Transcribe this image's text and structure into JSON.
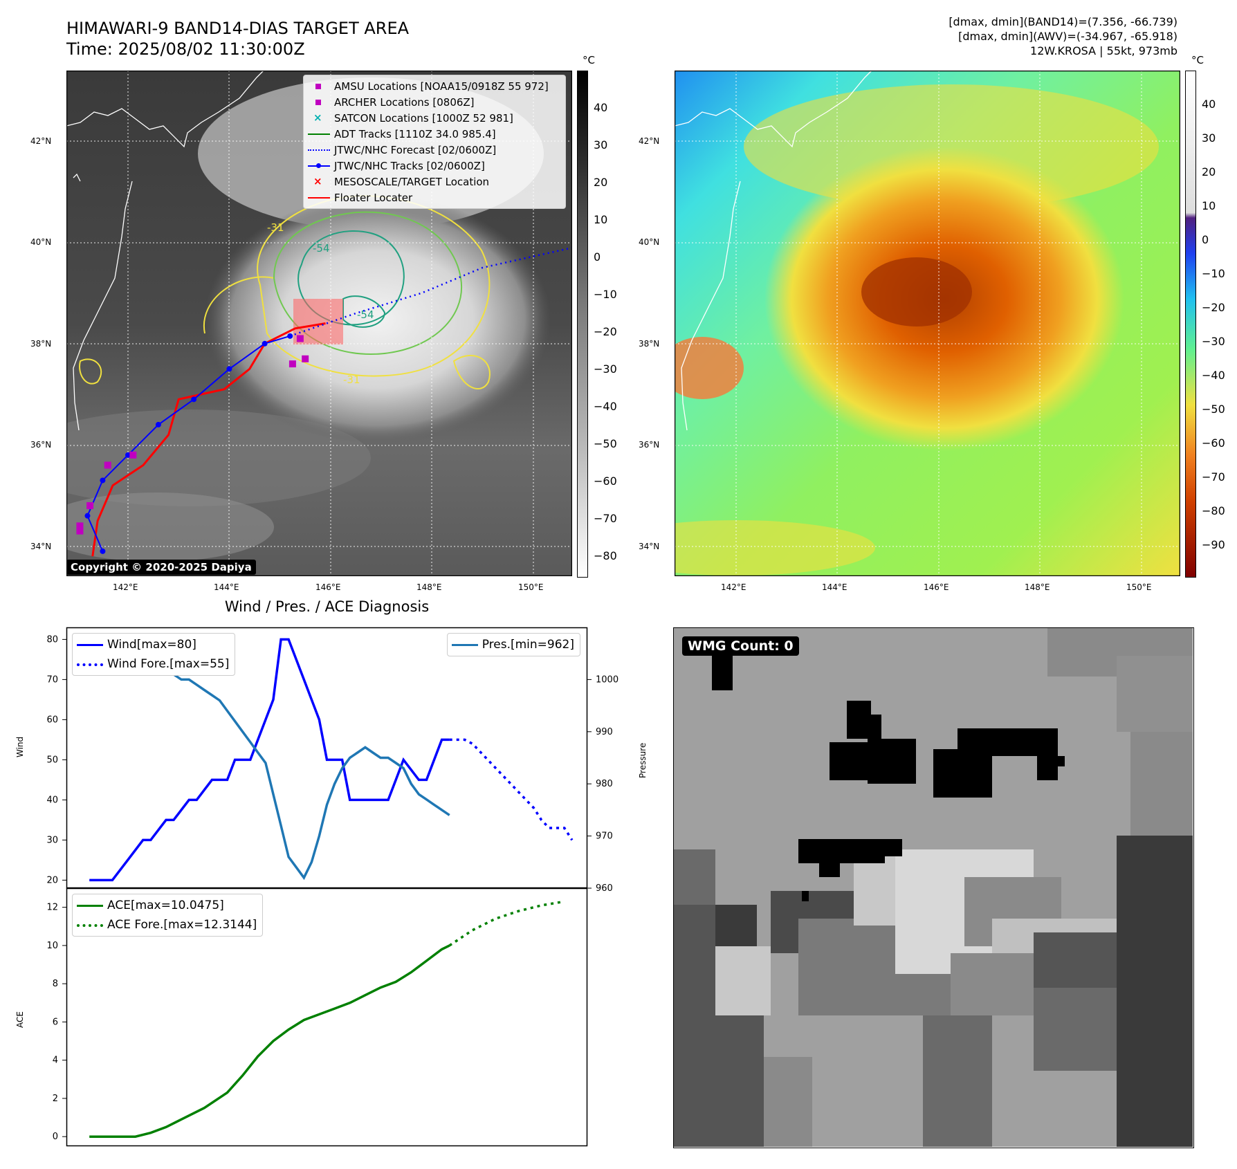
{
  "header": {
    "title_line1": "HIMAWARI-9 BAND14-DIAS TARGET AREA",
    "title_line2": "Time: 2025/08/02 11:30:00Z",
    "info_line1": "[dmax, dmin](BAND14)=(7.356, -66.739)",
    "info_line2": "[dmax, dmin](AWV)=(-34.967, -65.918)",
    "info_line3": "12W.KROSA | 55kt, 973mb"
  },
  "colors": {
    "wind": "#0000ff",
    "pressure": "#1f77b4",
    "ace": "#008000",
    "track_jtwc": "#0000ff",
    "track_adt": "#008000",
    "floater": "#ff0000",
    "amsu": "#c000c0",
    "satcon": "#00b0b0",
    "contour_yellow": "#f0e040",
    "contour_green": "#70c850",
    "contour_teal": "#20a080"
  },
  "map": {
    "lat_labels": [
      "42°N",
      "40°N",
      "38°N",
      "36°N",
      "34°N"
    ],
    "lon_labels": [
      "142°E",
      "144°E",
      "146°E",
      "148°E",
      "150°E"
    ],
    "copyright": "Copyright © 2020-2025 Dapiya",
    "contour_labels": [
      "-31",
      "-54",
      "-54",
      "-31"
    ],
    "legend": [
      {
        "label": "AMSU Locations [NOAA15/0918Z 55 972]",
        "icon": "square-icon",
        "color": "#c000c0"
      },
      {
        "label": "ARCHER Locations [0806Z]",
        "icon": "square-icon",
        "color": "#c000c0"
      },
      {
        "label": "SATCON Locations [1000Z 52 981]",
        "icon": "x-icon",
        "color": "#00b0b0"
      },
      {
        "label": "ADT Tracks [1110Z 34.0 985.4]",
        "icon": "line-icon",
        "color": "#008000"
      },
      {
        "label": "JTWC/NHC Forecast [02/0600Z]",
        "icon": "dotted-line-icon",
        "color": "#0000ff"
      },
      {
        "label": "JTWC/NHC Tracks [02/0600Z]",
        "icon": "line-dot-icon",
        "color": "#0000ff"
      },
      {
        "label": "MESOSCALE/TARGET Location",
        "icon": "x-icon",
        "color": "#ff0000"
      },
      {
        "label": "Floater Locater",
        "icon": "line-icon",
        "color": "#ff0000"
      }
    ],
    "track_jtwc": [
      [
        141.5,
        33.9
      ],
      [
        141.2,
        34.6
      ],
      [
        141.5,
        35.3
      ],
      [
        142.0,
        35.8
      ],
      [
        142.6,
        36.4
      ],
      [
        143.3,
        36.9
      ],
      [
        144.0,
        37.5
      ],
      [
        144.7,
        38.0
      ],
      [
        145.2,
        38.15
      ]
    ],
    "forecast_jtwc": [
      [
        145.2,
        38.15
      ],
      [
        146.5,
        38.6
      ],
      [
        147.8,
        39.0
      ],
      [
        149.0,
        39.5
      ],
      [
        150.8,
        39.9
      ]
    ],
    "amsu_points": [
      [
        141.05,
        34.3
      ],
      [
        141.05,
        34.4
      ],
      [
        141.25,
        34.8
      ],
      [
        141.6,
        35.6
      ],
      [
        142.1,
        35.8
      ],
      [
        145.25,
        37.6
      ],
      [
        145.5,
        37.7
      ],
      [
        145.4,
        38.1
      ]
    ],
    "floater": [
      [
        141.3,
        33.8
      ],
      [
        141.4,
        34.5
      ],
      [
        141.7,
        35.2
      ],
      [
        142.3,
        35.6
      ],
      [
        142.8,
        36.2
      ],
      [
        143.0,
        36.9
      ],
      [
        143.9,
        37.1
      ],
      [
        144.4,
        37.5
      ],
      [
        144.7,
        38.0
      ],
      [
        145.3,
        38.3
      ],
      [
        145.9,
        38.4
      ]
    ]
  },
  "awv_map": {
    "lat_labels": [
      "42°N",
      "40°N",
      "38°N",
      "36°N",
      "34°N"
    ],
    "lon_labels": [
      "142°E",
      "144°E",
      "146°E",
      "148°E",
      "150°E"
    ]
  },
  "colorbar_ir": {
    "unit": "°C",
    "ticks": [
      "40",
      "30",
      "20",
      "10",
      "0",
      "−10",
      "−20",
      "−30",
      "−40",
      "−50",
      "−60",
      "−70",
      "−80"
    ]
  },
  "colorbar_awv": {
    "unit": "°C",
    "ticks": [
      "40",
      "30",
      "20",
      "10",
      "0",
      "−10",
      "−20",
      "−30",
      "−40",
      "−50",
      "−60",
      "−70",
      "−80",
      "−90"
    ]
  },
  "diagnosis": {
    "title": "Wind / Pres. / ACE Diagnosis",
    "wind_ylabel": "Wind",
    "pres_ylabel": "Pressure",
    "ace_ylabel": "ACE",
    "wind_ticks": [
      "80",
      "70",
      "60",
      "50",
      "40",
      "30",
      "20"
    ],
    "pres_ticks": [
      "1000",
      "990",
      "980",
      "970",
      "960"
    ],
    "ace_ticks": [
      "12",
      "10",
      "8",
      "6",
      "4",
      "2",
      "0"
    ]
  },
  "chart_data": [
    {
      "type": "line",
      "title": "Wind / Pres. / ACE Diagnosis",
      "ylabel": "Wind",
      "ylim": [
        18,
        83
      ],
      "y2label": "Pressure",
      "y2lim": [
        960,
        1010
      ],
      "series": [
        {
          "name": "Wind[max=80]",
          "axis": "left",
          "style": "solid",
          "x": [
            0,
            3,
            5,
            7,
            8,
            10,
            11,
            13,
            14,
            16,
            18,
            19,
            20,
            21,
            22,
            23,
            24,
            25,
            26,
            28,
            30,
            31,
            33,
            34,
            36,
            37,
            38,
            39,
            40,
            41,
            43,
            44,
            46,
            47
          ],
          "values": [
            20,
            20,
            25,
            30,
            30,
            35,
            35,
            40,
            40,
            45,
            45,
            50,
            50,
            50,
            55,
            60,
            65,
            80,
            80,
            70,
            60,
            50,
            50,
            40,
            40,
            40,
            40,
            40,
            45,
            50,
            45,
            45,
            55,
            55
          ]
        },
        {
          "name": "Wind Fore.[max=55]",
          "axis": "left",
          "style": "dotted",
          "x": [
            47,
            48,
            49,
            50,
            51,
            52,
            53,
            54,
            55,
            56,
            57,
            58,
            59,
            60,
            61,
            62,
            63
          ],
          "values": [
            55,
            55,
            55,
            54,
            52,
            50,
            48,
            46,
            44,
            42,
            40,
            38,
            35,
            33,
            33,
            33,
            30
          ]
        },
        {
          "name": "Pres.[min=962]",
          "axis": "right",
          "style": "solid",
          "x": [
            0,
            3,
            4,
            5,
            6,
            7,
            8,
            9,
            10,
            11,
            12,
            13,
            14,
            15,
            16,
            17,
            18,
            19,
            20,
            21,
            22,
            23,
            24,
            25,
            26,
            27,
            28,
            29,
            30,
            31,
            32,
            33,
            34,
            35,
            36,
            37,
            38,
            39,
            40,
            41,
            42,
            43,
            44,
            45,
            46,
            47
          ],
          "values": [
            1007,
            1007,
            1006,
            1006,
            1005,
            1004,
            1003,
            1003,
            1002,
            1001,
            1000,
            1000,
            999,
            998,
            997,
            996,
            994,
            992,
            990,
            988,
            986,
            984,
            978,
            972,
            966,
            964,
            962,
            965,
            970,
            976,
            980,
            983,
            985,
            986,
            987,
            986,
            985,
            985,
            984,
            983,
            980,
            978,
            977,
            976,
            975,
            974
          ]
        }
      ]
    },
    {
      "type": "line",
      "ylabel": "ACE",
      "ylim": [
        -0.5,
        13
      ],
      "series": [
        {
          "name": "ACE[max=10.0475]",
          "style": "solid",
          "x": [
            0,
            3,
            6,
            8,
            10,
            12,
            15,
            18,
            20,
            22,
            24,
            26,
            28,
            30,
            32,
            34,
            36,
            38,
            40,
            42,
            44,
            46,
            47
          ],
          "values": [
            0,
            0,
            0,
            0.2,
            0.5,
            0.9,
            1.5,
            2.3,
            3.2,
            4.2,
            5.0,
            5.6,
            6.1,
            6.4,
            6.7,
            7.0,
            7.4,
            7.8,
            8.1,
            8.6,
            9.2,
            9.8,
            10.0
          ]
        },
        {
          "name": "ACE Fore.[max=12.3144]",
          "style": "dotted",
          "x": [
            47,
            50,
            53,
            56,
            59,
            62
          ],
          "values": [
            10.0,
            10.8,
            11.4,
            11.8,
            12.1,
            12.3
          ]
        }
      ]
    }
  ],
  "wmg": {
    "label": "WMG Count: 0"
  }
}
